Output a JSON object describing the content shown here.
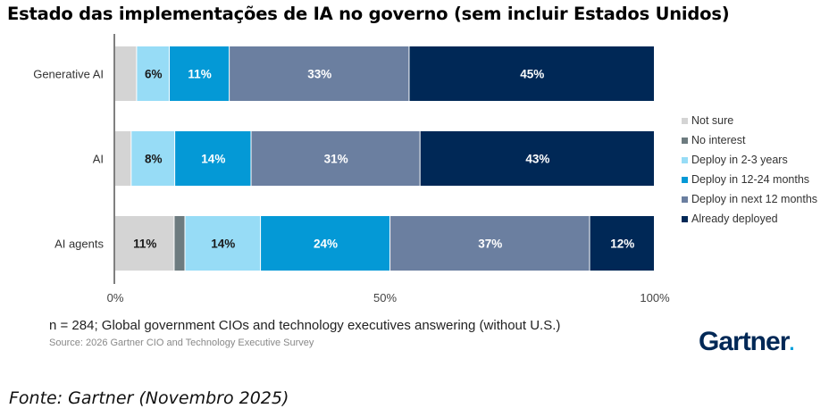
{
  "title": "Estado das implementações de IA no governo (sem incluir Estados Unidos)",
  "chart_data": {
    "type": "bar",
    "orientation": "horizontal",
    "stacked": true,
    "title": "Estado das implementações de IA no governo (sem incluir Estados Unidos)",
    "xlabel": "",
    "ylabel": "",
    "xlim": [
      0,
      100
    ],
    "x_ticks": [
      "0%",
      "50%",
      "100%"
    ],
    "x_tick_values": [
      0,
      50,
      100
    ],
    "grid": false,
    "legend_position": "right",
    "categories": [
      "Generative AI",
      "AI",
      "AI agents"
    ],
    "series": [
      {
        "name": "Not sure",
        "color": "#d4d4d4",
        "label_color": "#1a1a1a",
        "values": [
          4,
          3,
          11
        ],
        "labels": [
          "",
          "",
          "11%"
        ]
      },
      {
        "name": "No interest",
        "color": "#6d7b7f",
        "label_color": "#ffffff",
        "values": [
          0,
          0,
          2
        ],
        "labels": [
          "",
          "",
          ""
        ]
      },
      {
        "name": "Deploy in 2-3 years",
        "color": "#97dcf6",
        "label_color": "#1a1a1a",
        "values": [
          6,
          8,
          14
        ],
        "labels": [
          "6%",
          "8%",
          "14%"
        ]
      },
      {
        "name": "Deploy in 12-24 months",
        "color": "#0499d6",
        "label_color": "#ffffff",
        "values": [
          11,
          14,
          24
        ],
        "labels": [
          "11%",
          "14%",
          "24%"
        ]
      },
      {
        "name": "Deploy in next 12 months",
        "color": "#6b7fa0",
        "label_color": "#ffffff",
        "values": [
          33,
          31,
          37
        ],
        "labels": [
          "33%",
          "31%",
          "37%"
        ]
      },
      {
        "name": "Already deployed",
        "color": "#002856",
        "label_color": "#ffffff",
        "values": [
          45,
          43,
          12
        ],
        "labels": [
          "45%",
          "43%",
          "12%"
        ]
      }
    ]
  },
  "footer": {
    "note": "n = 284; Global government CIOs and technology executives answering (without U.S.)",
    "source": "Source: 2026 Gartner CIO and Technology Executive Survey",
    "logo": "Gartner",
    "fonte": "Fonte: Gartner (Novembro 2025)"
  }
}
